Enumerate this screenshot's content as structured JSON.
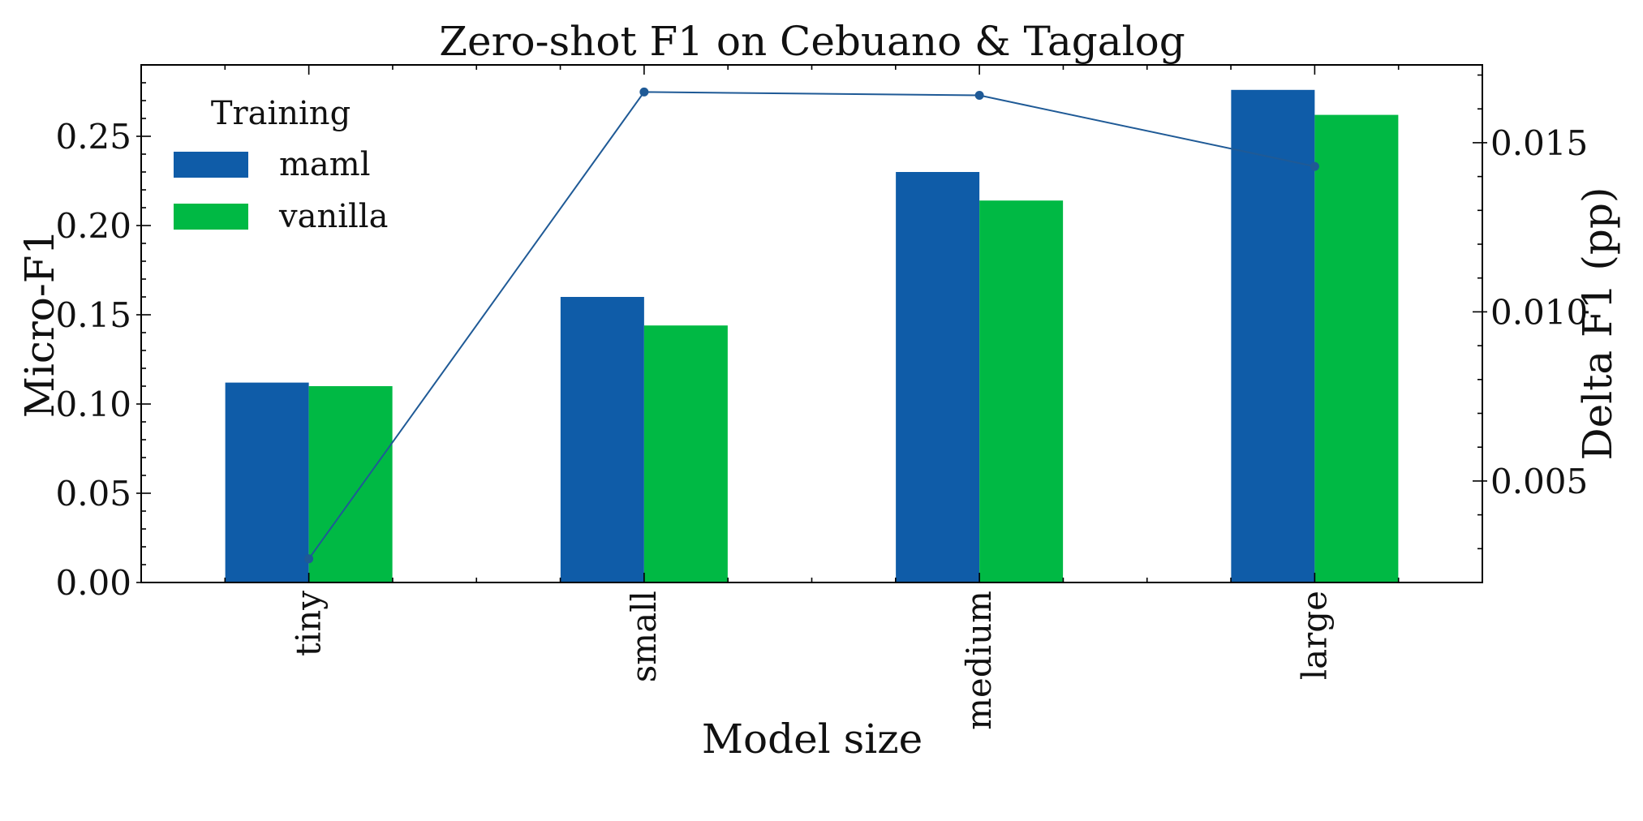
{
  "chart_data": {
    "type": "bar",
    "title": "Zero-shot F1 on Cebuano & Tagalog",
    "xlabel": "Model size",
    "ylabel": "Micro-F1",
    "y2label": "Delta F1 (pp)",
    "categories": [
      "tiny",
      "small",
      "medium",
      "large"
    ],
    "series": [
      {
        "name": "maml",
        "color": "#0f5ca8",
        "values": [
          0.112,
          0.16,
          0.23,
          0.276
        ]
      },
      {
        "name": "vanilla",
        "color": "#00b944",
        "values": [
          0.11,
          0.144,
          0.214,
          0.262
        ]
      }
    ],
    "line_series": {
      "color": "#1f5a96",
      "axis": "right",
      "values": [
        0.0027,
        0.0165,
        0.0164,
        0.0143
      ]
    },
    "ylim": [
      0,
      0.29
    ],
    "yticks": [
      "0.00",
      "0.05",
      "0.10",
      "0.15",
      "0.20",
      "0.25"
    ],
    "y2lim": [
      0.002,
      0.0173
    ],
    "y2ticks": [
      "0.005",
      "0.010",
      "0.015"
    ],
    "legend": {
      "title": "Training",
      "placement": "upper left"
    },
    "grid": false
  }
}
